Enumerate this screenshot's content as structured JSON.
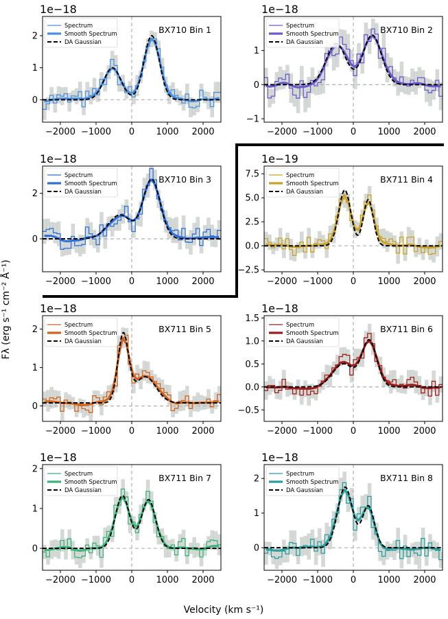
{
  "figure": {
    "xlabel": "Velocity (km s⁻¹)",
    "ylabel": "Fλ (erg s⁻¹ cm⁻² Å⁻¹)",
    "legend_labels": [
      "Spectrum",
      "Smooth Spectrum",
      "DA Gaussian"
    ],
    "uncertainty_color": "#b8bfb9",
    "model_color": "#000000",
    "reference_line_color": "#b0b0b0"
  },
  "chart_data": [
    {
      "type": "line",
      "title": "BX710 Bin 1",
      "multiplier": "1e−18",
      "color": "#4a90e2",
      "xlim": [
        -2500,
        2500
      ],
      "ylim": [
        -0.7,
        2.6
      ],
      "xticks": [
        -2000,
        -1000,
        0,
        1000,
        2000
      ],
      "yticks": [
        0,
        1,
        2
      ],
      "x_ticklabels": [
        "−2000",
        "−1000",
        "0",
        "1000",
        "2000"
      ],
      "y_ticklabels": [
        "0",
        "1",
        "2"
      ],
      "vline": 0,
      "hline": 0,
      "noise": 0.3,
      "gaussian": {
        "a1": 1.0,
        "mu1": -540,
        "s1": 240,
        "a2": 2.0,
        "mu2": 560,
        "s2": 215
      },
      "legend": "top-left",
      "series": [
        {
          "name": "Spectrum"
        },
        {
          "name": "Smooth Spectrum"
        },
        {
          "name": "DA Gaussian"
        }
      ]
    },
    {
      "type": "line",
      "title": "BX710 Bin 2",
      "multiplier": "1e−18",
      "color": "#6a5acd",
      "xlim": [
        -2500,
        2500
      ],
      "ylim": [
        -1.1,
        2.0
      ],
      "xticks": [
        -2000,
        -1000,
        0,
        1000,
        2000
      ],
      "yticks": [
        -1,
        0,
        1
      ],
      "x_ticklabels": [
        "−2000",
        "−1000",
        "0",
        "1000",
        "2000"
      ],
      "y_ticklabels": [
        "−1",
        "0",
        "1"
      ],
      "vline": 0,
      "hline": 0,
      "noise": 0.4,
      "gaussian": {
        "a1": 1.2,
        "mu1": -480,
        "s1": 280,
        "a2": 1.45,
        "mu2": 530,
        "s2": 260
      },
      "legend": "top-left",
      "series": [
        {
          "name": "Spectrum"
        },
        {
          "name": "Smooth Spectrum"
        },
        {
          "name": "DA Gaussian"
        }
      ]
    },
    {
      "type": "line",
      "title": "BX710 Bin 3",
      "multiplier": "1e−18",
      "color": "#2e6fdb",
      "xlim": [
        -2500,
        2500
      ],
      "ylim": [
        -1.45,
        3.2
      ],
      "xticks": [
        -2000,
        -1000,
        0,
        1000,
        2000
      ],
      "yticks": [
        0,
        2
      ],
      "x_ticklabels": [
        "−2000",
        "−1000",
        "0",
        "1000",
        "2000"
      ],
      "y_ticklabels": [
        "0",
        "2"
      ],
      "vline": 0,
      "hline": 0,
      "noise": 0.5,
      "gaussian": {
        "a1": 1.05,
        "mu1": -330,
        "s1": 330,
        "a2": 2.6,
        "mu2": 560,
        "s2": 240
      },
      "legend": "top-left",
      "series": [
        {
          "name": "Spectrum"
        },
        {
          "name": "Smooth Spectrum"
        },
        {
          "name": "DA Gaussian"
        }
      ]
    },
    {
      "type": "line",
      "title": "BX711 Bin 4",
      "multiplier": "1e−19",
      "color": "#c9a227",
      "xlim": [
        -2500,
        2500
      ],
      "ylim": [
        -2.7,
        8.3
      ],
      "xticks": [
        -2000,
        -1000,
        0,
        1000,
        2000
      ],
      "yticks": [
        -2.5,
        0,
        2.5,
        5,
        7.5
      ],
      "x_ticklabels": [
        "−2000",
        "−1000",
        "0",
        "1000",
        "2000"
      ],
      "y_ticklabels": [
        "−2.5",
        "0.0",
        "2.5",
        "5.0",
        "7.5"
      ],
      "vline": 0,
      "hline": 0,
      "noise": 1.0,
      "gaussian": {
        "a1": 5.8,
        "mu1": -240,
        "s1": 170,
        "a2": 4.8,
        "mu2": 420,
        "s2": 140
      },
      "legend": "top-left",
      "series": [
        {
          "name": "Spectrum"
        },
        {
          "name": "Smooth Spectrum"
        },
        {
          "name": "DA Gaussian"
        }
      ]
    },
    {
      "type": "line",
      "title": "BX711 Bin 5",
      "multiplier": "1e−18",
      "color": "#d2621c",
      "xlim": [
        -2500,
        2500
      ],
      "ylim": [
        -0.4,
        2.35
      ],
      "xticks": [
        -2000,
        -1000,
        0,
        1000,
        2000
      ],
      "yticks": [
        0,
        1,
        2
      ],
      "x_ticklabels": [
        "−2000",
        "−1000",
        "0",
        "1000",
        "2000"
      ],
      "y_ticklabels": [
        "0",
        "1",
        "2"
      ],
      "vline": 0,
      "hline": 0,
      "noise": 0.25,
      "baseline": 0.08,
      "gaussian": {
        "a1": 1.75,
        "mu1": -240,
        "s1": 150,
        "a2": 0.68,
        "mu2": 380,
        "s2": 300
      },
      "legend": "top-left",
      "series": [
        {
          "name": "Spectrum"
        },
        {
          "name": "Smooth Spectrum"
        },
        {
          "name": "DA Gaussian"
        }
      ]
    },
    {
      "type": "line",
      "title": "BX711 Bin 6",
      "multiplier": "1e−18",
      "color": "#a01c1c",
      "xlim": [
        -2500,
        2500
      ],
      "ylim": [
        -0.75,
        1.55
      ],
      "xticks": [
        -2000,
        -1000,
        0,
        1000,
        2000
      ],
      "yticks": [
        -0.5,
        0,
        0.5,
        1,
        1.5
      ],
      "x_ticklabels": [
        "−2000",
        "−1000",
        "0",
        "1000",
        "2000"
      ],
      "y_ticklabels": [
        "−0.5",
        "0.0",
        "0.5",
        "1.0",
        "1.5"
      ],
      "vline": 0,
      "hline": 0,
      "noise": 0.22,
      "gaussian": {
        "a1": 0.5,
        "mu1": -280,
        "s1": 300,
        "a2": 1.0,
        "mu2": 450,
        "s2": 210
      },
      "legend": "top-left",
      "series": [
        {
          "name": "Spectrum"
        },
        {
          "name": "Smooth Spectrum"
        },
        {
          "name": "DA Gaussian"
        }
      ]
    },
    {
      "type": "line",
      "title": "BX711 Bin 7",
      "multiplier": "1e−18",
      "color": "#3cb37a",
      "xlim": [
        -2500,
        2500
      ],
      "ylim": [
        -0.55,
        2.1
      ],
      "xticks": [
        -2000,
        -1000,
        0,
        1000,
        2000
      ],
      "yticks": [
        0,
        1,
        2
      ],
      "x_ticklabels": [
        "−2000",
        "−1000",
        "0",
        "1000",
        "2000"
      ],
      "y_ticklabels": [
        "0",
        "1",
        "2"
      ],
      "vline": 0,
      "hline": 0,
      "noise": 0.25,
      "gaussian": {
        "a1": 1.32,
        "mu1": -260,
        "s1": 200,
        "a2": 1.22,
        "mu2": 470,
        "s2": 200
      },
      "legend": "top-left",
      "series": [
        {
          "name": "Spectrum"
        },
        {
          "name": "Smooth Spectrum"
        },
        {
          "name": "DA Gaussian"
        }
      ]
    },
    {
      "type": "line",
      "title": "BX711 Bin 8",
      "multiplier": "1e−18",
      "color": "#2a9d9d",
      "xlim": [
        -2500,
        2500
      ],
      "ylim": [
        -0.65,
        2.4
      ],
      "xticks": [
        -2000,
        -1000,
        0,
        1000,
        2000
      ],
      "yticks": [
        0,
        1,
        2
      ],
      "x_ticklabels": [
        "−2000",
        "−1000",
        "0",
        "1000",
        "2000"
      ],
      "y_ticklabels": [
        "0",
        "1",
        "2"
      ],
      "vline": 0,
      "hline": 0,
      "noise": 0.35,
      "gaussian": {
        "a1": 1.75,
        "mu1": -230,
        "s1": 210,
        "a2": 1.2,
        "mu2": 420,
        "s2": 170
      },
      "legend": "top-left",
      "series": [
        {
          "name": "Spectrum"
        },
        {
          "name": "Smooth Spectrum"
        },
        {
          "name": "DA Gaussian"
        }
      ]
    }
  ]
}
